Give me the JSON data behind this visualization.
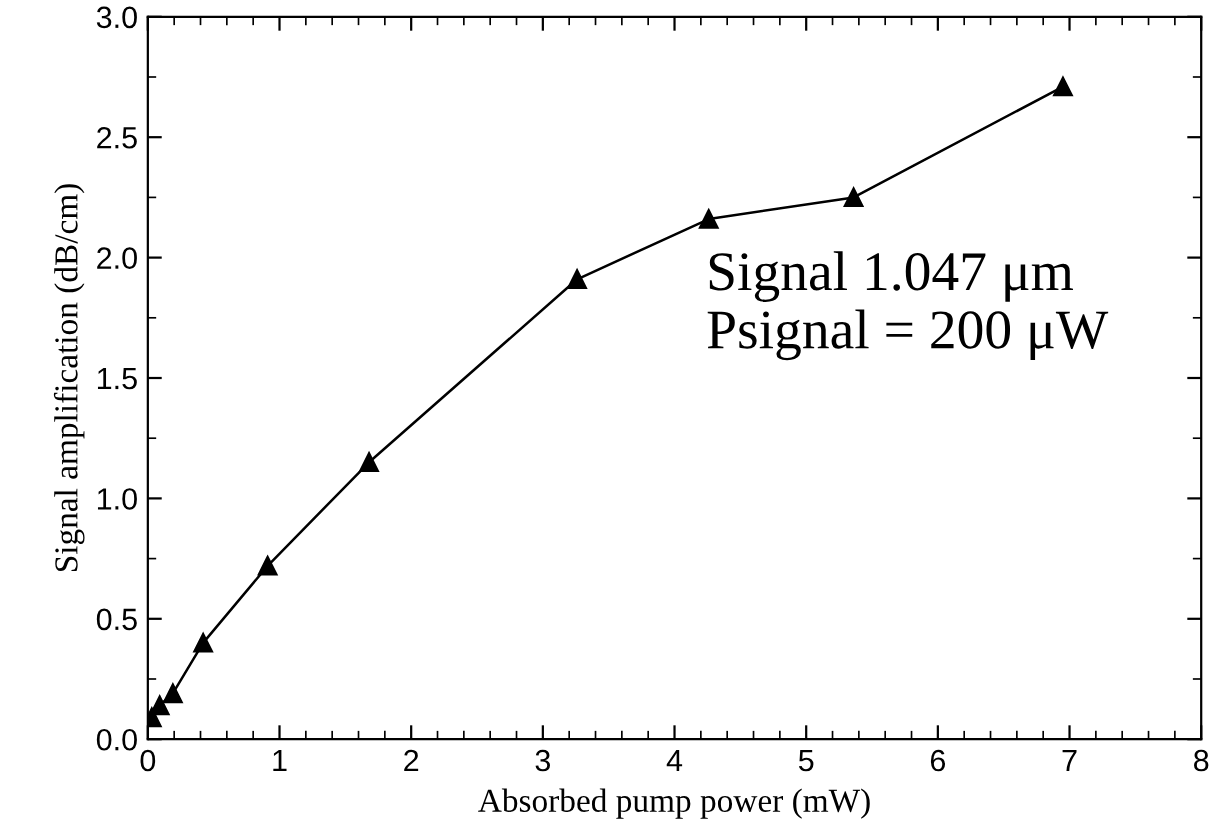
{
  "chart_data": {
    "type": "line",
    "xlabel": "Absorbed pump power (mW)",
    "ylabel": "Signal amplification (dB/cm)",
    "annotations": [
      "Signal 1.047 μm\nPsignal = 200 μW"
    ],
    "series": [
      {
        "color": "#000000",
        "x": [
          0.03,
          0.09,
          0.19,
          0.42,
          0.91,
          1.68,
          3.26,
          4.26,
          5.36,
          6.95
        ],
        "values": [
          0.09,
          0.14,
          0.19,
          0.4,
          0.72,
          1.15,
          1.91,
          2.16,
          2.25,
          2.71
        ]
      }
    ],
    "xlim": [
      0,
      8
    ],
    "ylim": [
      0,
      3.0
    ],
    "xticks": [
      0,
      1,
      2,
      3,
      4,
      5,
      6,
      7,
      8
    ],
    "yticks": [
      {
        "value": 0,
        "label": "0.0"
      },
      {
        "value": 0.5,
        "label": "0.5"
      },
      {
        "value": 1,
        "label": "1.0"
      },
      {
        "value": 1.5,
        "label": "1.5"
      },
      {
        "value": 2,
        "label": "2.0"
      },
      {
        "value": 2.5,
        "label": "2.5"
      },
      {
        "value": 3,
        "label": "3.0"
      }
    ],
    "marker": "triangle",
    "line_style": "solid",
    "grid": false,
    "legend": false
  }
}
